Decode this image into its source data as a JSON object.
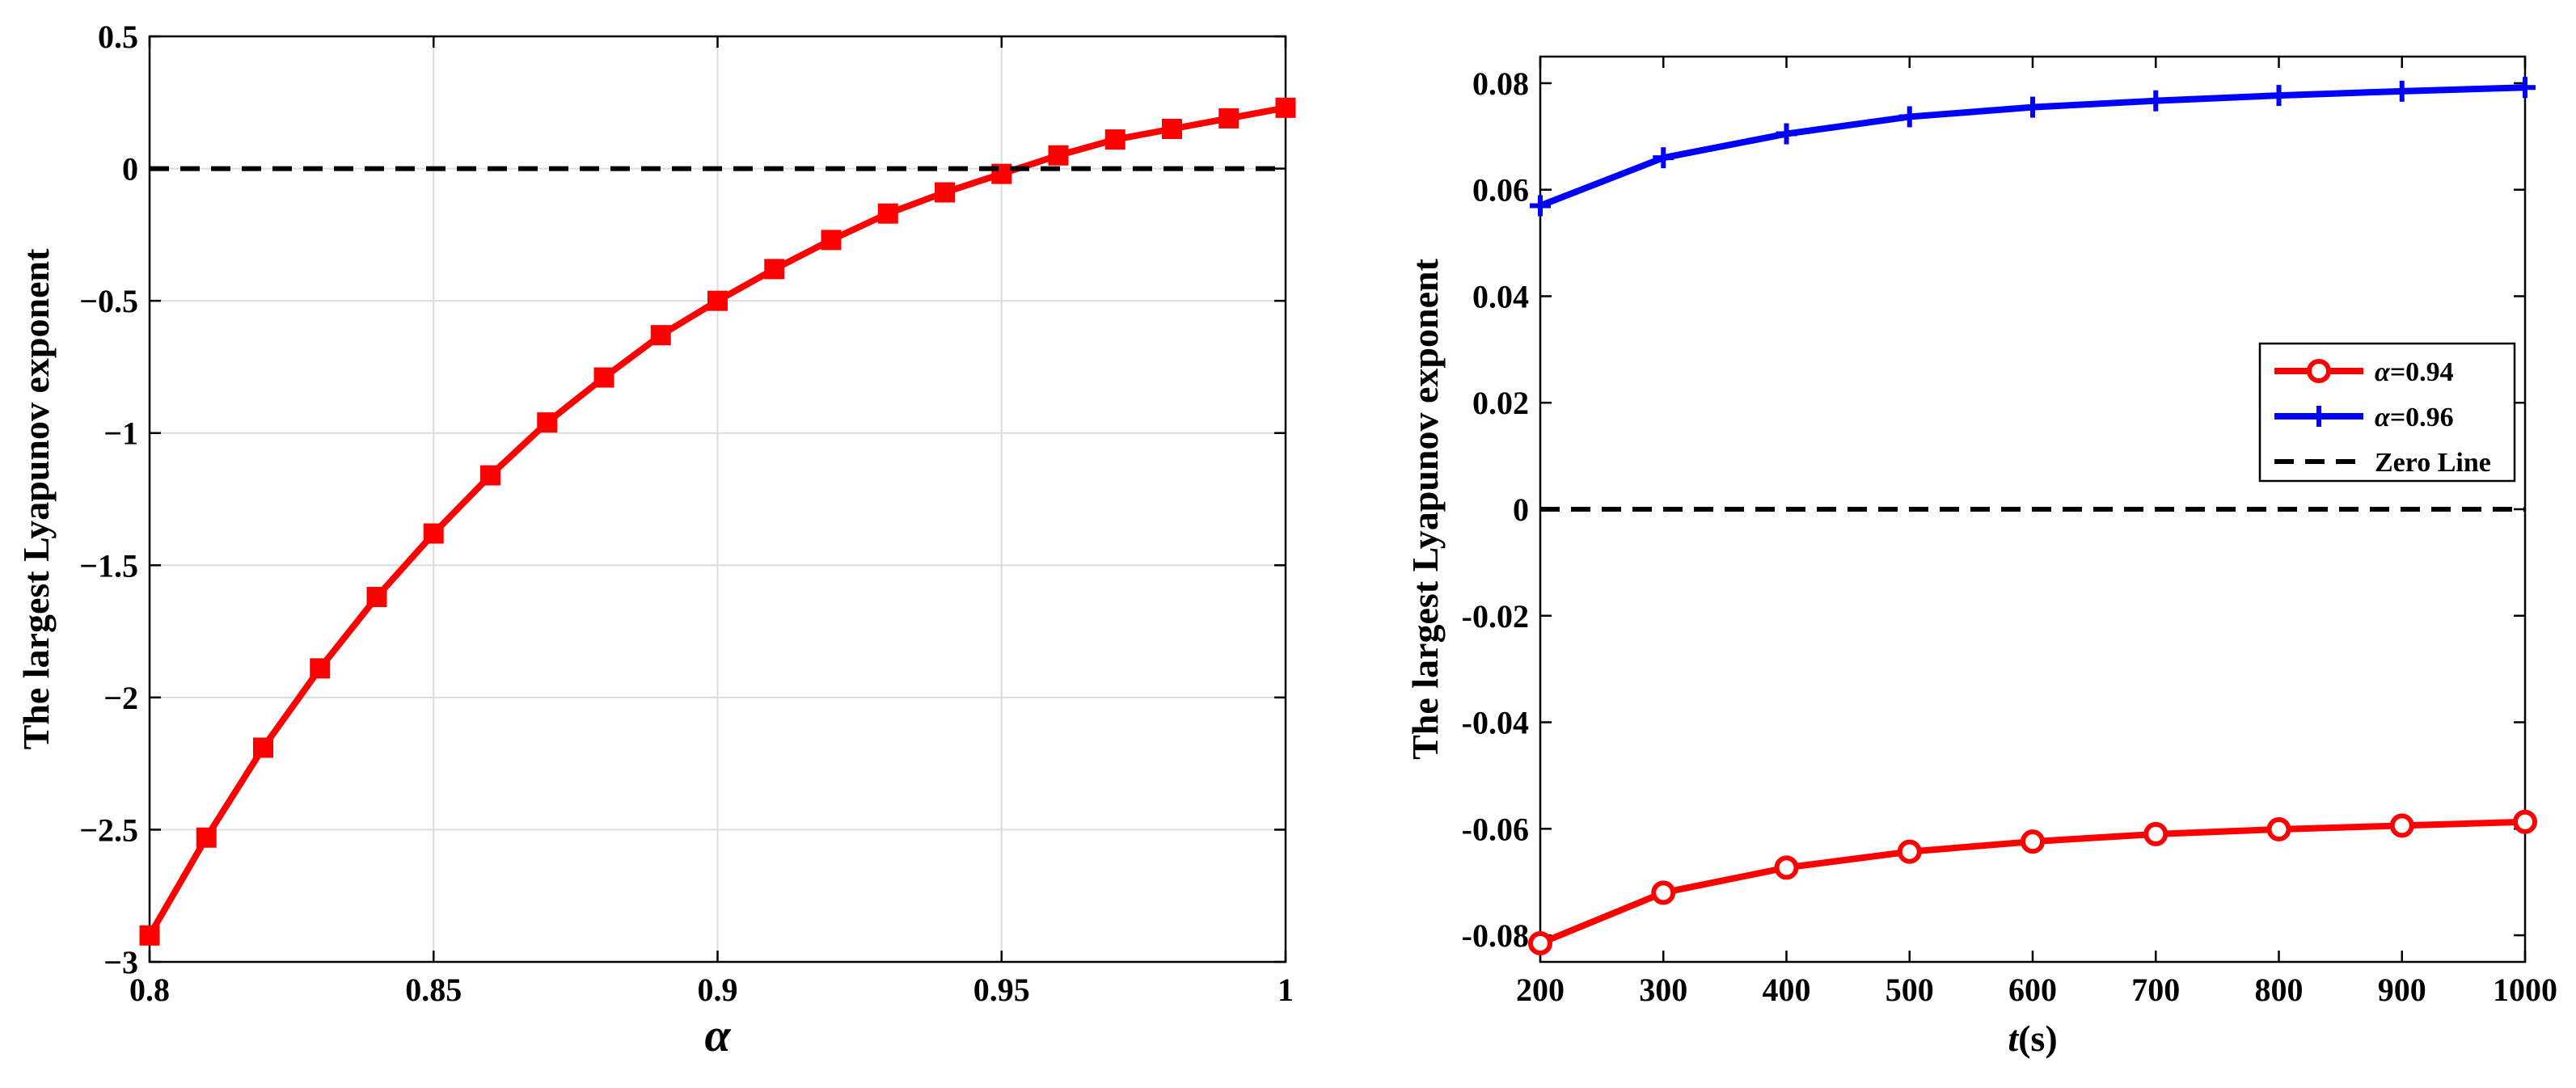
{
  "chart_data": [
    {
      "type": "line",
      "xlabel": "α",
      "ylabel": "The largest Lyapunov exponent",
      "xlim": [
        0.8,
        1.0
      ],
      "ylim": [
        -3,
        0.5
      ],
      "xticks": [
        0.8,
        0.85,
        0.9,
        0.95,
        1.0
      ],
      "xtick_labels": [
        "0.8",
        "0.85",
        "0.9",
        "0.95",
        "1"
      ],
      "yticks": [
        0.5,
        0,
        -0.5,
        -1,
        -1.5,
        -2,
        -2.5,
        -3
      ],
      "ytick_labels": [
        "0.5",
        "0",
        "−0.5",
        "−1",
        "−1.5",
        "−2",
        "−2.5",
        "−3"
      ],
      "grid": true,
      "legend": "none",
      "series": [
        {
          "color": "#ff0000",
          "marker": "square",
          "style": "solid",
          "x": [
            0.8,
            0.81,
            0.82,
            0.83,
            0.84,
            0.85,
            0.86,
            0.87,
            0.88,
            0.89,
            0.9,
            0.91,
            0.92,
            0.93,
            0.94,
            0.95,
            0.96,
            0.97,
            0.98,
            0.99,
            1.0
          ],
          "y": [
            -2.9,
            -2.53,
            -2.19,
            -1.89,
            -1.62,
            -1.38,
            -1.16,
            -0.96,
            -0.79,
            -0.63,
            -0.5,
            -0.38,
            -0.27,
            -0.17,
            -0.09,
            -0.02,
            0.05,
            0.11,
            0.15,
            0.19,
            0.23
          ]
        },
        {
          "color": "#000000",
          "marker": "none",
          "style": "dashed",
          "x": [
            0.8,
            1.0
          ],
          "y": [
            0,
            0
          ]
        }
      ]
    },
    {
      "type": "line",
      "xlabel": "t(s)",
      "ylabel": "The largest Lyapunov exponent",
      "xlim": [
        200,
        1000
      ],
      "ylim": [
        -0.085,
        0.085
      ],
      "xticks": [
        200,
        300,
        400,
        500,
        600,
        700,
        800,
        900,
        1000
      ],
      "xtick_labels": [
        "200",
        "300",
        "400",
        "500",
        "600",
        "700",
        "800",
        "900",
        "1000"
      ],
      "yticks": [
        0.08,
        0.06,
        0.04,
        0.02,
        0,
        -0.02,
        -0.04,
        -0.06,
        -0.08
      ],
      "ytick_labels": [
        "0.08",
        "0.06",
        "0.04",
        "0.02",
        "0",
        "-0.02",
        "-0.04",
        "-0.06",
        "-0.08"
      ],
      "grid": false,
      "legend": "right, upper-middle",
      "series": [
        {
          "name": "α=0.94",
          "color": "#ff0000",
          "marker": "circle",
          "style": "solid",
          "x": [
            200,
            300,
            400,
            500,
            600,
            700,
            800,
            900,
            1000
          ],
          "y": [
            -0.0815,
            -0.072,
            -0.0673,
            -0.0643,
            -0.0624,
            -0.061,
            -0.0601,
            -0.0594,
            -0.0587
          ]
        },
        {
          "name": "α=0.96",
          "color": "#0000ff",
          "marker": "plus",
          "style": "solid",
          "x": [
            200,
            300,
            400,
            500,
            600,
            700,
            800,
            900,
            1000
          ],
          "y": [
            0.057,
            0.066,
            0.0705,
            0.0737,
            0.0755,
            0.0767,
            0.0777,
            0.0785,
            0.0792
          ]
        },
        {
          "name": "Zero Line",
          "color": "#000000",
          "marker": "none",
          "style": "dashed",
          "x": [
            200,
            1000
          ],
          "y": [
            0,
            0
          ]
        }
      ]
    }
  ]
}
